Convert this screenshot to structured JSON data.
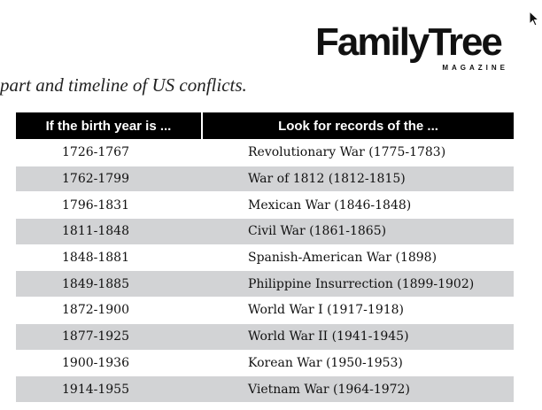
{
  "logo": {
    "name": "FamilyTree",
    "subtitle": "MAGAZINE"
  },
  "intro": "part and timeline of US conflicts.",
  "table": {
    "header": [
      "If the birth year is ...",
      "Look for records of the ..."
    ],
    "rows": [
      [
        "1726-1767",
        "Revolutionary War (1775-1783)"
      ],
      [
        "1762-1799",
        "War of 1812 (1812-1815)"
      ],
      [
        "1796-1831",
        "Mexican War (1846-1848)"
      ],
      [
        "1811-1848",
        "Civil War (1861-1865)"
      ],
      [
        "1848-1881",
        "Spanish-American War (1898)"
      ],
      [
        "1849-1885",
        "Philippine Insurrection (1899-1902)"
      ],
      [
        "1872-1900",
        "World War I (1917-1918)"
      ],
      [
        "1877-1925",
        "World War II (1941-1945)"
      ],
      [
        "1900-1936",
        "Korean War (1950-1953)"
      ],
      [
        "1914-1955",
        "Vietnam War (1964-1972)"
      ]
    ]
  }
}
